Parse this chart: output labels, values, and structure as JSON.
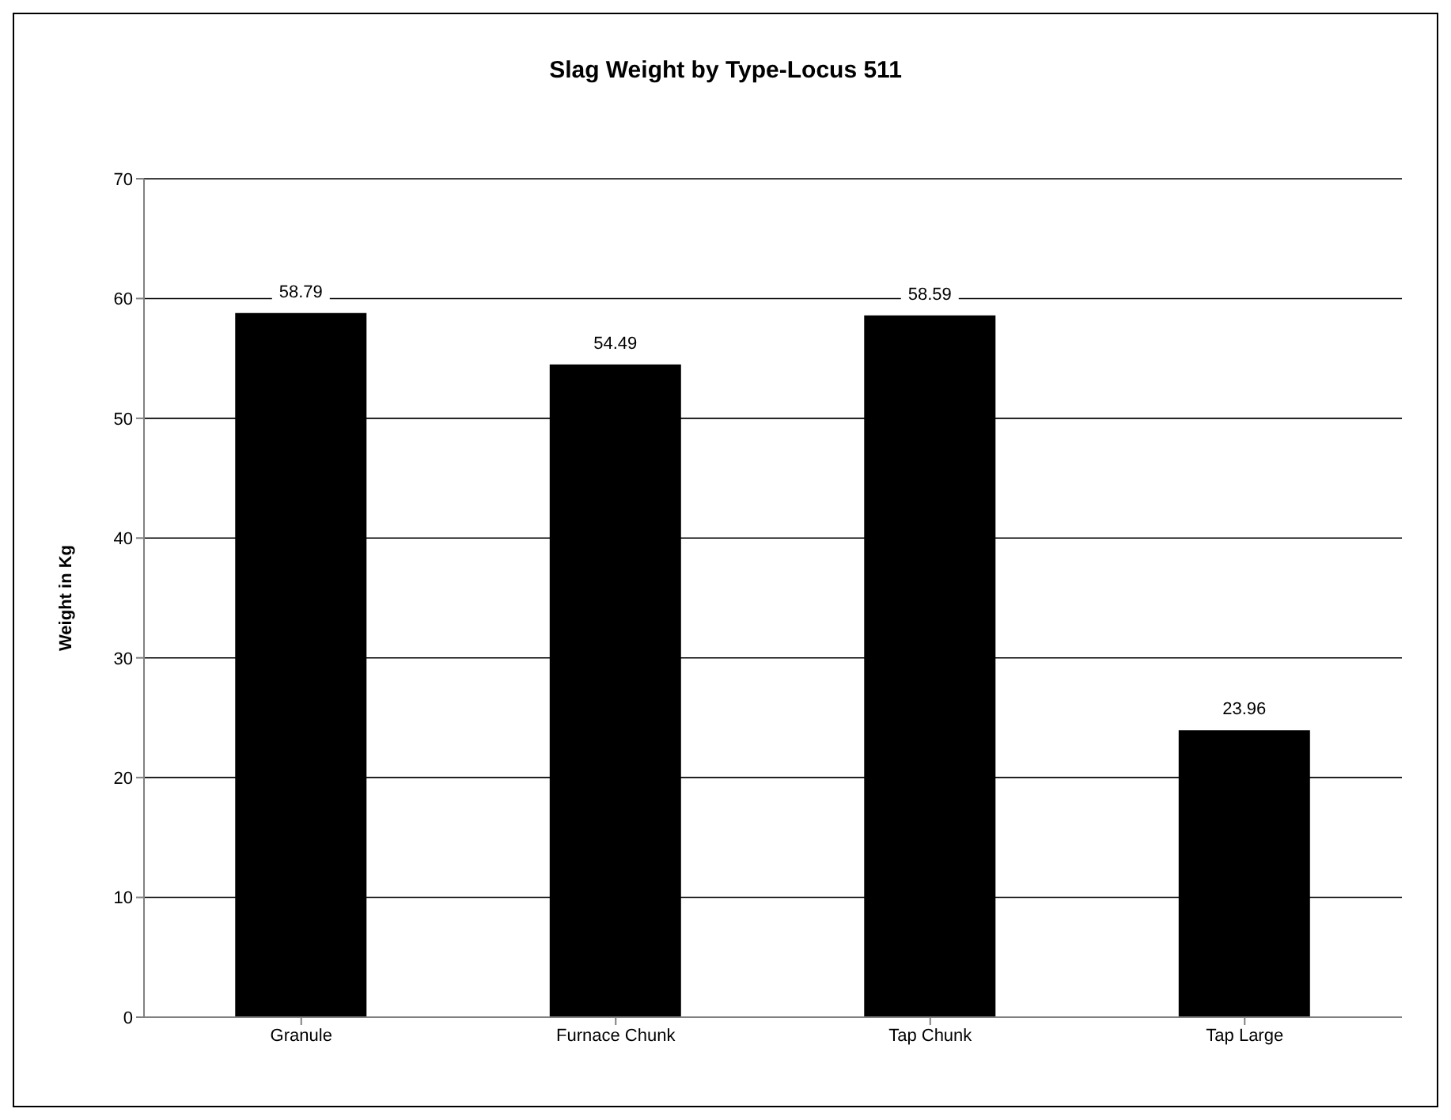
{
  "chart_data": {
    "type": "bar",
    "title": "Slag Weight by Type-Locus 511",
    "ylabel": "Weight in Kg",
    "categories": [
      "Granule",
      "Furnace Chunk",
      "Tap Chunk",
      "Tap Large"
    ],
    "values": [
      58.79,
      54.49,
      58.59,
      23.96
    ],
    "color": "#000000",
    "ylim": [
      0,
      70
    ],
    "yticks": [
      0,
      10,
      20,
      30,
      40,
      50,
      60,
      70
    ],
    "grid": "y",
    "data_labels": true
  }
}
